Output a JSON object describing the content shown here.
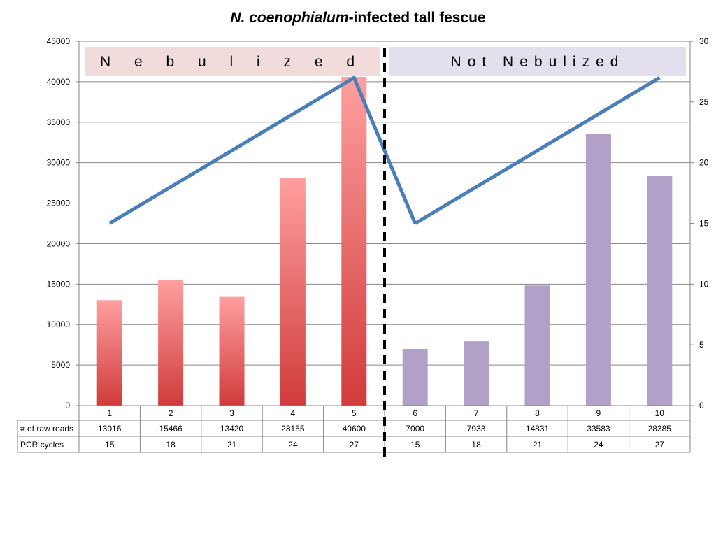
{
  "chart_data": {
    "type": "bar",
    "title": {
      "italic": "N. coenophialum",
      "rest": "-infected tall fescue"
    },
    "categories": [
      "1",
      "2",
      "3",
      "4",
      "5",
      "6",
      "7",
      "8",
      "9",
      "10"
    ],
    "series": [
      {
        "name": "# of raw reads",
        "type": "bar",
        "axis": "left",
        "values": [
          13016,
          15466,
          13420,
          28155,
          40600,
          7000,
          7933,
          14831,
          33583,
          28385
        ]
      },
      {
        "name": "PCR cycles",
        "type": "line",
        "axis": "right",
        "values": [
          15,
          18,
          21,
          24,
          27,
          15,
          18,
          21,
          24,
          27
        ],
        "color": "#4A7EBB"
      }
    ],
    "ylim_left": [
      0,
      45000
    ],
    "yticks_left": [
      "0",
      "5000",
      "10000",
      "15000",
      "20000",
      "25000",
      "30000",
      "35000",
      "40000",
      "45000"
    ],
    "ylim_right": [
      0,
      30
    ],
    "yticks_right": [
      "0",
      "5",
      "10",
      "15",
      "20",
      "25",
      "30"
    ],
    "grid": true,
    "group_labels": [
      {
        "text": "N e b u l i z e d",
        "color": "#F2DCDB"
      },
      {
        "text": "Not Nebulized",
        "color": "#E4DFEC"
      }
    ],
    "colors": {
      "nebulized_bar_top": "#FF9F9F",
      "nebulized_bar_bottom": "#D13B3B",
      "not_nebulized_bar": "#B1A0C7",
      "line": "#4A7EBB",
      "divider": "#000000"
    },
    "table": {
      "row_labels": [
        "# of raw reads",
        "PCR cycles"
      ]
    }
  }
}
